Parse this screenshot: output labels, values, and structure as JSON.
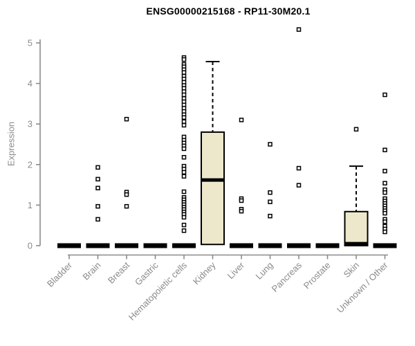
{
  "palette": {
    "box_fill": "#EDE8CB",
    "box_stroke": "#000000",
    "axis_color": "#8a8a8a",
    "tick_label_color": "#8a8a8a",
    "title_color": "#000000",
    "background": "#ffffff"
  },
  "chart_data": {
    "type": "boxplot",
    "title": "ENSG00000215168 - RP11-30M20.1",
    "ylabel": "Expression",
    "xlabel": "",
    "ylim": [
      0,
      5
    ],
    "yticks": [
      0,
      1,
      2,
      3,
      4,
      5
    ],
    "grid": "off",
    "legend": "none",
    "categories": [
      "Bladder",
      "Brain",
      "Breast",
      "Gastric",
      "Hematopoietic cells",
      "Kidney",
      "Liver",
      "Lung",
      "Pancreas",
      "Prostate",
      "Skin",
      "Unknown / Other"
    ],
    "boxes": [
      {
        "category": "Bladder",
        "q1": 0,
        "median": 0,
        "q3": 0,
        "whisker_low": 0,
        "whisker_high": 0,
        "outliers": []
      },
      {
        "category": "Brain",
        "q1": 0,
        "median": 0,
        "q3": 0,
        "whisker_low": 0,
        "whisker_high": 0,
        "outliers": [
          1.93,
          1.64,
          1.42,
          0.97,
          0.65
        ]
      },
      {
        "category": "Breast",
        "q1": 0,
        "median": 0,
        "q3": 0,
        "whisker_low": 0,
        "whisker_high": 0,
        "outliers": [
          3.12,
          1.32,
          1.26,
          0.97
        ]
      },
      {
        "category": "Gastric",
        "q1": 0,
        "median": 0,
        "q3": 0,
        "whisker_low": 0,
        "whisker_high": 0,
        "outliers": []
      },
      {
        "category": "Hematopoietic cells",
        "q1": 0,
        "median": 0,
        "q3": 0,
        "whisker_low": 0,
        "whisker_high": 0,
        "outliers": [
          4.64,
          4.59,
          4.47,
          4.41,
          4.34,
          4.27,
          4.18,
          4.11,
          4.03,
          3.95,
          3.88,
          3.8,
          3.72,
          3.63,
          3.55,
          3.47,
          3.39,
          3.31,
          3.23,
          3.16,
          3.06,
          2.97,
          2.68,
          2.6,
          2.53,
          2.46,
          2.39,
          2.18,
          1.96,
          1.89,
          1.81,
          1.71,
          1.33,
          1.19,
          1.13,
          1.07,
          1.01,
          0.95,
          0.89,
          0.83,
          0.77,
          0.7,
          0.51,
          0.37
        ]
      },
      {
        "category": "Kidney",
        "q1": 0.03,
        "median": 1.62,
        "q3": 2.8,
        "whisker_low": 0.03,
        "whisker_high": 4.54,
        "outliers": []
      },
      {
        "category": "Liver",
        "q1": 0,
        "median": 0,
        "q3": 0,
        "whisker_low": 0,
        "whisker_high": 0,
        "outliers": [
          3.1,
          1.16,
          1.11,
          0.9,
          0.85
        ]
      },
      {
        "category": "Lung",
        "q1": 0,
        "median": 0,
        "q3": 0,
        "whisker_low": 0,
        "whisker_high": 0,
        "outliers": [
          2.5,
          1.31,
          1.08,
          0.73
        ]
      },
      {
        "category": "Pancreas",
        "q1": 0,
        "median": 0,
        "q3": 0,
        "whisker_low": 0,
        "whisker_high": 0,
        "outliers": [
          5.33,
          1.91,
          1.49
        ]
      },
      {
        "category": "Prostate",
        "q1": 0,
        "median": 0,
        "q3": 0,
        "whisker_low": 0,
        "whisker_high": 0,
        "outliers": []
      },
      {
        "category": "Skin",
        "q1": 0,
        "median": 0.05,
        "q3": 0.84,
        "whisker_low": 0,
        "whisker_high": 1.96,
        "outliers": [
          2.87
        ]
      },
      {
        "category": "Unknown / Other",
        "q1": 0,
        "median": 0,
        "q3": 0,
        "whisker_low": 0,
        "whisker_high": 0,
        "outliers": [
          3.72,
          2.36,
          1.84,
          1.54,
          1.38,
          1.31,
          1.16,
          1.1,
          1.04,
          0.98,
          0.92,
          0.86,
          0.8,
          0.65,
          0.59,
          0.48,
          0.41,
          0.34
        ]
      }
    ]
  }
}
